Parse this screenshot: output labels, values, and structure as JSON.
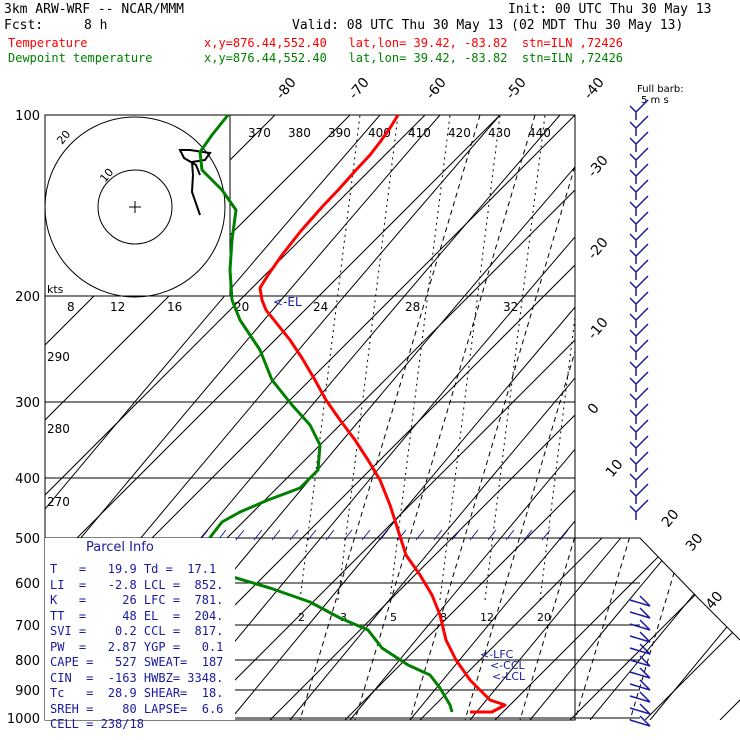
{
  "header": {
    "model": "3km ARW-WRF -- NCAR/MMM",
    "init": "Init: 00 UTC Thu 30 May 13",
    "fcst_label": "Fcst:",
    "fcst_value": "8 h",
    "valid": "Valid: 08 UTC Thu 30 May 13 (02 MDT Thu 30 May 13)",
    "temp_label": "Temperature",
    "dew_label": "Dewpoint temperature",
    "location": "x,y=876.44,552.40   lat,lon= 39.42, -83.82  stn=ILN ,72426"
  },
  "colors": {
    "temperature": "#ff0000",
    "dewpoint": "#008000",
    "text_blue": "#1a1aa0",
    "barb": "#1a1aa0"
  },
  "chart_data": {
    "type": "line",
    "title": "",
    "pressure_levels": [
      100,
      200,
      300,
      400,
      500,
      600,
      700,
      800,
      900,
      1000
    ],
    "isotherm_labels": [
      "-80",
      "-70",
      "-60",
      "-50",
      "-40",
      "-30",
      "-20",
      "-10",
      "0",
      "10",
      "20",
      "30",
      "40"
    ],
    "theta_e_labels": [
      "370",
      "380",
      "390",
      "400",
      "410",
      "420",
      "430",
      "440"
    ],
    "hodo_speed_labels": [
      "8",
      "12",
      "16",
      "20",
      "24",
      "28",
      "32"
    ],
    "left_side_labels": [
      "290",
      "280",
      "270"
    ],
    "mixing_ratio_labels": [
      "2",
      "3",
      "5",
      "8",
      "12",
      "20"
    ],
    "hodo_rings": [
      "10",
      "20"
    ],
    "hodo_unit": "kts",
    "barb_legend": "Full barb:\n5 m s",
    "levels_markers": {
      "el": "<-EL",
      "lfc": "<-LFC",
      "ccl": "<-CCL",
      "lcl": "<-LCL"
    },
    "series": [
      {
        "name": "Temperature",
        "color": "#ff0000",
        "points": [
          [
            398,
            115
          ],
          [
            390,
            128
          ],
          [
            380,
            142
          ],
          [
            370,
            155
          ],
          [
            356,
            170
          ],
          [
            340,
            188
          ],
          [
            322,
            207
          ],
          [
            300,
            232
          ],
          [
            282,
            255
          ],
          [
            268,
            275
          ],
          [
            260,
            288
          ],
          [
            262,
            300
          ],
          [
            266,
            310
          ],
          [
            278,
            325
          ],
          [
            290,
            340
          ],
          [
            302,
            358
          ],
          [
            315,
            380
          ],
          [
            326,
            400
          ],
          [
            340,
            420
          ],
          [
            355,
            440
          ],
          [
            368,
            460
          ],
          [
            380,
            480
          ],
          [
            390,
            505
          ],
          [
            398,
            530
          ],
          [
            406,
            555
          ],
          [
            420,
            575
          ],
          [
            432,
            595
          ],
          [
            440,
            615
          ],
          [
            446,
            640
          ],
          [
            456,
            660
          ],
          [
            470,
            680
          ],
          [
            490,
            700
          ],
          [
            505,
            705
          ],
          [
            492,
            712
          ],
          [
            470,
            712
          ]
        ]
      },
      {
        "name": "Dewpoint temperature",
        "color": "#008000",
        "points": [
          [
            228,
            115
          ],
          [
            212,
            135
          ],
          [
            200,
            152
          ],
          [
            202,
            170
          ],
          [
            222,
            190
          ],
          [
            236,
            210
          ],
          [
            232,
            240
          ],
          [
            230,
            270
          ],
          [
            232,
            300
          ],
          [
            240,
            320
          ],
          [
            260,
            350
          ],
          [
            272,
            380
          ],
          [
            292,
            405
          ],
          [
            310,
            425
          ],
          [
            320,
            445
          ],
          [
            318,
            470
          ],
          [
            300,
            488
          ],
          [
            268,
            500
          ],
          [
            240,
            512
          ],
          [
            222,
            522
          ],
          [
            208,
            540
          ],
          [
            208,
            560
          ],
          [
            226,
            575
          ],
          [
            270,
            588
          ],
          [
            310,
            602
          ],
          [
            340,
            618
          ],
          [
            368,
            630
          ],
          [
            382,
            648
          ],
          [
            408,
            665
          ],
          [
            430,
            675
          ],
          [
            440,
            688
          ],
          [
            450,
            705
          ],
          [
            452,
            712
          ]
        ]
      }
    ],
    "hodograph": [
      [
        200,
        175
      ],
      [
        196,
        165
      ],
      [
        184,
        158
      ],
      [
        180,
        150
      ],
      [
        190,
        150
      ],
      [
        210,
        153
      ],
      [
        205,
        160
      ],
      [
        192,
        162
      ],
      [
        193,
        175
      ],
      [
        192,
        192
      ],
      [
        200,
        215
      ]
    ]
  },
  "parcel": {
    "title": "Parcel Info",
    "rows": [
      "T   =   19.9 Td =  17.1",
      "LI  =   -2.8 LCL =  852.",
      "K   =     26 LFC =  781.",
      "TT  =     48 EL  =  204.",
      "SVI =    0.2 CCL =  817.",
      "PW  =   2.87 YGP =   0.1",
      "CAPE =   527 SWEAT=  187",
      "CIN  =  -163 HWBZ= 3348.",
      "Tc   =  28.9 SHEAR=  18.",
      "SREH =    80 LAPSE=  6.6",
      "CELL = 238/18"
    ]
  }
}
